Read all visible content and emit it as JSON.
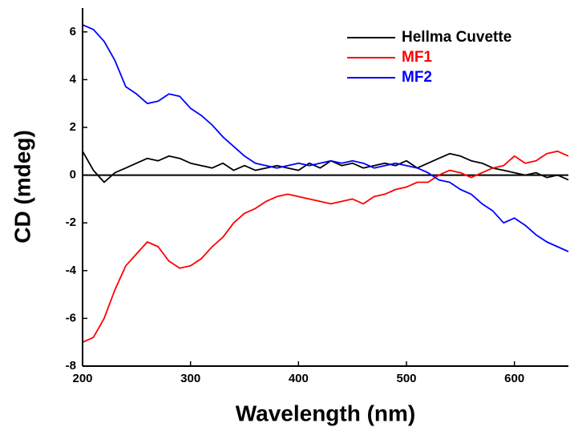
{
  "chart_data": {
    "type": "line",
    "x_label": "Wavelength (nm)",
    "y_label": "CD (mdeg)",
    "x": [
      200,
      210,
      220,
      230,
      240,
      250,
      260,
      270,
      280,
      290,
      300,
      310,
      320,
      330,
      340,
      350,
      360,
      370,
      380,
      390,
      400,
      410,
      420,
      430,
      440,
      450,
      460,
      470,
      480,
      490,
      500,
      510,
      520,
      530,
      540,
      550,
      560,
      570,
      580,
      590,
      600,
      610,
      620,
      630,
      640,
      650
    ],
    "series": [
      {
        "name": "Hellma Cuvette",
        "color": "#000000",
        "values": [
          1.0,
          0.2,
          -0.3,
          0.1,
          0.3,
          0.5,
          0.7,
          0.6,
          0.8,
          0.7,
          0.5,
          0.4,
          0.3,
          0.5,
          0.2,
          0.4,
          0.2,
          0.3,
          0.4,
          0.3,
          0.2,
          0.5,
          0.3,
          0.6,
          0.4,
          0.5,
          0.3,
          0.4,
          0.5,
          0.4,
          0.6,
          0.3,
          0.5,
          0.7,
          0.9,
          0.8,
          0.6,
          0.5,
          0.3,
          0.2,
          0.1,
          0.0,
          0.1,
          -0.1,
          0.0,
          -0.2
        ]
      },
      {
        "name": "MF1",
        "color": "#ff0000",
        "values": [
          -7.0,
          -6.8,
          -6.0,
          -4.8,
          -3.8,
          -3.3,
          -2.8,
          -3.0,
          -3.6,
          -3.9,
          -3.8,
          -3.5,
          -3.0,
          -2.6,
          -2.0,
          -1.6,
          -1.4,
          -1.1,
          -0.9,
          -0.8,
          -0.9,
          -1.0,
          -1.1,
          -1.2,
          -1.1,
          -1.0,
          -1.2,
          -0.9,
          -0.8,
          -0.6,
          -0.5,
          -0.3,
          -0.3,
          0.0,
          0.2,
          0.1,
          -0.1,
          0.1,
          0.3,
          0.4,
          0.8,
          0.5,
          0.6,
          0.9,
          1.0,
          0.8
        ]
      },
      {
        "name": "MF2",
        "color": "#0000ff",
        "values": [
          6.3,
          6.1,
          5.6,
          4.8,
          3.7,
          3.4,
          3.0,
          3.1,
          3.4,
          3.3,
          2.8,
          2.5,
          2.1,
          1.6,
          1.2,
          0.8,
          0.5,
          0.4,
          0.3,
          0.4,
          0.5,
          0.4,
          0.5,
          0.6,
          0.5,
          0.6,
          0.5,
          0.3,
          0.4,
          0.5,
          0.4,
          0.3,
          0.1,
          -0.2,
          -0.3,
          -0.6,
          -0.8,
          -1.2,
          -1.5,
          -2.0,
          -1.8,
          -2.1,
          -2.5,
          -2.8,
          -3.0,
          -3.2
        ]
      }
    ],
    "xlim": [
      200,
      650
    ],
    "ylim": [
      -8,
      7
    ],
    "xticks": [
      200,
      300,
      400,
      500,
      600
    ],
    "yticks": [
      -8,
      -6,
      -4,
      -2,
      0,
      2,
      4,
      6
    ],
    "hline": 0,
    "legend": "upper right"
  }
}
